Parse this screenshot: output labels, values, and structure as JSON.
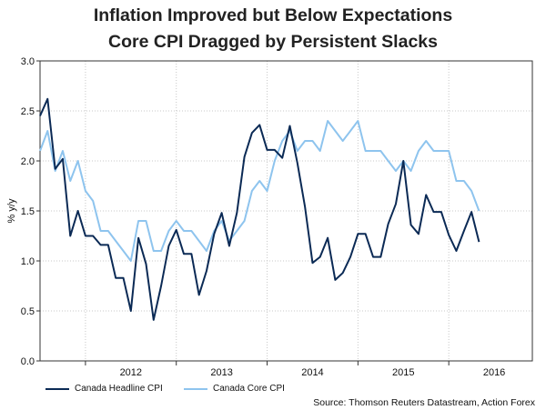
{
  "chart_data": {
    "type": "line",
    "title_line1": "Inflation Improved but Below Expectations",
    "title_line2": "Core CPI Dragged by Persistent Slacks",
    "ylabel": "% y/y",
    "ylim": [
      0,
      3
    ],
    "yticks": [
      "0.0",
      "0.5",
      "1.0",
      "1.5",
      "2.0",
      "2.5",
      "3.0"
    ],
    "ytick_values": [
      0,
      0.5,
      1,
      1.5,
      2,
      2.5,
      3
    ],
    "x_start": 2011.5,
    "x_end": 2016.92,
    "x_year_labels": [
      "2012",
      "2013",
      "2014",
      "2015",
      "2016"
    ],
    "x_year_positions": [
      2012,
      2013,
      2014,
      2015,
      2016
    ],
    "grid": true,
    "source": "Source: Thomson Reuters Datastream, Action Forex",
    "series": [
      {
        "name": "Canada Headline CPI",
        "color": "#0b2a55",
        "x": [
          2011.5,
          2011.583,
          2011.667,
          2011.75,
          2011.833,
          2011.917,
          2012.0,
          2012.083,
          2012.167,
          2012.25,
          2012.333,
          2012.417,
          2012.5,
          2012.583,
          2012.667,
          2012.75,
          2012.833,
          2012.917,
          2013.0,
          2013.083,
          2013.167,
          2013.25,
          2013.333,
          2013.417,
          2013.5,
          2013.583,
          2013.667,
          2013.75,
          2013.833,
          2013.917,
          2014.0,
          2014.083,
          2014.167,
          2014.25,
          2014.333,
          2014.417,
          2014.5,
          2014.583,
          2014.667,
          2014.75,
          2014.833,
          2014.917,
          2015.0,
          2015.083,
          2015.167,
          2015.25,
          2015.333,
          2015.417,
          2015.5,
          2015.583,
          2015.667,
          2015.75,
          2015.833,
          2015.917,
          2016.0,
          2016.083,
          2016.167,
          2016.25,
          2016.333,
          2016.417,
          2016.5
        ],
        "values": [
          2.45,
          2.62,
          1.92,
          2.02,
          1.25,
          1.5,
          1.25,
          1.25,
          1.16,
          1.16,
          0.83,
          0.83,
          0.5,
          1.23,
          0.97,
          0.41,
          0.75,
          1.15,
          1.31,
          1.07,
          1.07,
          0.66,
          0.9,
          1.27,
          1.48,
          1.15,
          1.48,
          2.04,
          2.28,
          2.36,
          2.11,
          2.11,
          2.03,
          2.35,
          1.98,
          1.54,
          0.98,
          1.04,
          1.23,
          0.81,
          0.88,
          1.04,
          1.27,
          1.27,
          1.04,
          1.04,
          1.37,
          1.57,
          2.0,
          1.36,
          1.27,
          1.66,
          1.49,
          1.49,
          1.26,
          1.1,
          1.3,
          1.49,
          1.19,
          null,
          null
        ]
      },
      {
        "name": "Canada Core CPI",
        "color": "#8ec4ee",
        "x": [
          2011.5,
          2011.583,
          2011.667,
          2011.75,
          2011.833,
          2011.917,
          2012.0,
          2012.083,
          2012.167,
          2012.25,
          2012.333,
          2012.417,
          2012.5,
          2012.583,
          2012.667,
          2012.75,
          2012.833,
          2012.917,
          2013.0,
          2013.083,
          2013.167,
          2013.25,
          2013.333,
          2013.417,
          2013.5,
          2013.583,
          2013.667,
          2013.75,
          2013.833,
          2013.917,
          2014.0,
          2014.083,
          2014.167,
          2014.25,
          2014.333,
          2014.417,
          2014.5,
          2014.583,
          2014.667,
          2014.75,
          2014.833,
          2014.917,
          2015.0,
          2015.083,
          2015.167,
          2015.25,
          2015.333,
          2015.417,
          2015.5,
          2015.583,
          2015.667,
          2015.75,
          2015.833,
          2015.917,
          2016.0,
          2016.083,
          2016.167,
          2016.25,
          2016.333,
          2016.417,
          2016.5
        ],
        "values": [
          2.1,
          2.3,
          1.9,
          2.1,
          1.8,
          2.0,
          1.7,
          1.6,
          1.3,
          1.3,
          1.2,
          1.1,
          1.0,
          1.4,
          1.4,
          1.1,
          1.1,
          1.3,
          1.4,
          1.3,
          1.3,
          1.2,
          1.1,
          1.3,
          1.4,
          1.2,
          1.3,
          1.4,
          1.7,
          1.8,
          1.7,
          2.0,
          2.2,
          2.3,
          2.1,
          2.2,
          2.2,
          2.1,
          2.4,
          2.3,
          2.2,
          2.3,
          2.4,
          2.1,
          2.1,
          2.1,
          2.0,
          1.9,
          2.0,
          1.9,
          2.1,
          2.2,
          2.1,
          2.1,
          2.1,
          1.8,
          1.8,
          1.7,
          1.5,
          null,
          null
        ]
      }
    ]
  }
}
